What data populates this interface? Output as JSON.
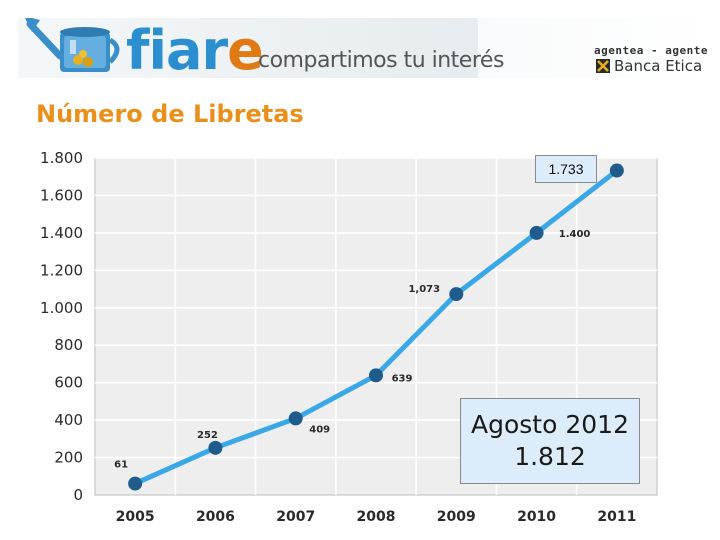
{
  "header": {
    "brand_main": "fiar",
    "brand_accent": "e",
    "tagline": "compartimos tu interés",
    "agent_text": "agentea - agente",
    "partner_name": "Banca Etica"
  },
  "colors": {
    "brand_blue": "#2b8fcf",
    "brand_orange": "#e07a15",
    "title_orange": "#e8901a",
    "line_color": "#3aa8e6",
    "point_color": "#1f5c8c",
    "plot_bg": "#eeeeee",
    "callout_bg": "#dcecfa"
  },
  "chart_data": {
    "type": "line",
    "title": "Número de Libretas",
    "xlabel": "",
    "ylabel": "",
    "categories": [
      "2005",
      "2006",
      "2007",
      "2008",
      "2009",
      "2010",
      "2011"
    ],
    "values": [
      61,
      252,
      409,
      639,
      1073,
      1400,
      1733
    ],
    "data_labels": [
      "61",
      "252",
      "409",
      "639",
      "1,073",
      "1.400",
      ""
    ],
    "y_ticks": [
      0,
      200,
      400,
      600,
      800,
      1000,
      1200,
      1400,
      1600,
      1800
    ],
    "y_tick_labels": [
      "0",
      "200",
      "400",
      "600",
      "800",
      "1.000",
      "1.200",
      "1.400",
      "1.600",
      "1.800"
    ],
    "ylim": [
      0,
      1800
    ],
    "grid": true,
    "annotations": {
      "last_value_callout": "1.733",
      "august_label": "Agosto 2012",
      "august_value": "1.812"
    }
  }
}
